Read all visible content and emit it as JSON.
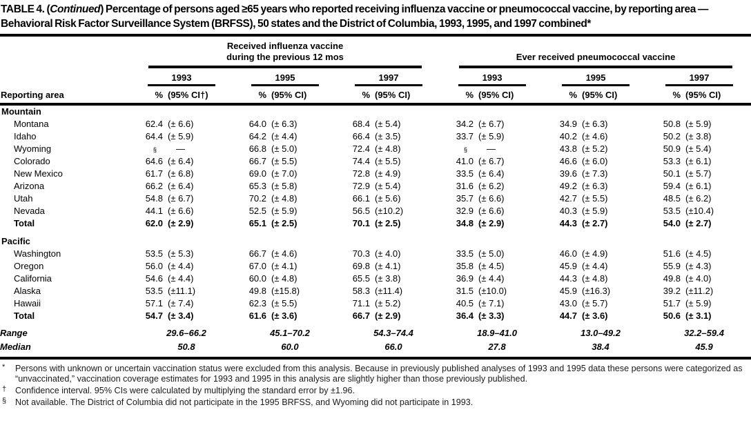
{
  "title": {
    "part1": "TABLE 4. (",
    "continued": "Continued",
    "part2": ") Percentage of persons aged ≥65 years who reported receiving influenza vaccine or pneumococcal vaccine, by reporting area — Behavioral Risk Factor Surveillance System (BRFSS), 50 states and the District of Columbia, 1993, 1995, and 1997 combined*"
  },
  "table": {
    "reporting_area_label": "Reporting area",
    "groups": [
      {
        "id": "influenza",
        "label_line1": "Received influenza vaccine",
        "label_line2": "during the previous 12 mos",
        "years": [
          "1993",
          "1995",
          "1997"
        ]
      },
      {
        "id": "pneumococcal",
        "label_line1": "Ever received pneumococcal vaccine",
        "label_line2": "",
        "years": [
          "1993",
          "1995",
          "1997"
        ]
      }
    ],
    "col_header": {
      "pct": "%",
      "ci_first": "(95% CI†)",
      "ci": "(95% CI)"
    },
    "sections": [
      {
        "name": "Mountain",
        "rows": [
          {
            "area": "Montana",
            "cells": [
              [
                "62.4",
                "(± 6.6)"
              ],
              [
                "64.0",
                "(± 6.3)"
              ],
              [
                "68.4",
                "(± 5.4)"
              ],
              [
                "34.2",
                "(± 6.7)"
              ],
              [
                "34.9",
                "(± 6.3)"
              ],
              [
                "50.8",
                "(± 5.9)"
              ]
            ]
          },
          {
            "area": "Idaho",
            "cells": [
              [
                "64.4",
                "(± 5.9)"
              ],
              [
                "64.2",
                "(± 4.4)"
              ],
              [
                "66.4",
                "(± 3.5)"
              ],
              [
                "33.7",
                "(± 5.9)"
              ],
              [
                "40.2",
                "(± 4.6)"
              ],
              [
                "50.2",
                "(± 3.8)"
              ]
            ]
          },
          {
            "area": "Wyoming",
            "cells": [
              [
                "§",
                "—"
              ],
              [
                "66.8",
                "(± 5.0)"
              ],
              [
                "72.4",
                "(± 4.8)"
              ],
              [
                "§",
                "—"
              ],
              [
                "43.8",
                "(± 5.2)"
              ],
              [
                "50.9",
                "(± 5.4)"
              ]
            ]
          },
          {
            "area": "Colorado",
            "cells": [
              [
                "64.6",
                "(± 6.4)"
              ],
              [
                "66.7",
                "(± 5.5)"
              ],
              [
                "74.4",
                "(± 5.5)"
              ],
              [
                "41.0",
                "(± 6.7)"
              ],
              [
                "46.6",
                "(± 6.0)"
              ],
              [
                "53.3",
                "(± 6.1)"
              ]
            ]
          },
          {
            "area": "New Mexico",
            "cells": [
              [
                "61.7",
                "(± 6.8)"
              ],
              [
                "69.0",
                "(± 7.0)"
              ],
              [
                "72.8",
                "(± 4.9)"
              ],
              [
                "33.5",
                "(± 6.4)"
              ],
              [
                "39.6",
                "(± 7.3)"
              ],
              [
                "50.1",
                "(± 5.7)"
              ]
            ]
          },
          {
            "area": "Arizona",
            "cells": [
              [
                "66.2",
                "(± 6.4)"
              ],
              [
                "65.3",
                "(± 5.8)"
              ],
              [
                "72.9",
                "(± 5.4)"
              ],
              [
                "31.6",
                "(± 6.2)"
              ],
              [
                "49.2",
                "(± 6.3)"
              ],
              [
                "59.4",
                "(± 6.1)"
              ]
            ]
          },
          {
            "area": "Utah",
            "cells": [
              [
                "54.8",
                "(± 6.7)"
              ],
              [
                "70.2",
                "(± 4.8)"
              ],
              [
                "66.1",
                "(± 5.6)"
              ],
              [
                "35.7",
                "(± 6.6)"
              ],
              [
                "42.7",
                "(± 5.5)"
              ],
              [
                "48.5",
                "(± 6.2)"
              ]
            ]
          },
          {
            "area": "Nevada",
            "cells": [
              [
                "44.1",
                "(± 6.6)"
              ],
              [
                "52.5",
                "(± 5.9)"
              ],
              [
                "56.5",
                "(±10.2)"
              ],
              [
                "32.9",
                "(± 6.6)"
              ],
              [
                "40.3",
                "(± 5.9)"
              ],
              [
                "53.5",
                "(±10.4)"
              ]
            ]
          },
          {
            "area": "Total",
            "bold": true,
            "cells": [
              [
                "62.0",
                "(± 2.9)"
              ],
              [
                "65.1",
                "(± 2.5)"
              ],
              [
                "70.1",
                "(± 2.5)"
              ],
              [
                "34.8",
                "(± 2.9)"
              ],
              [
                "44.3",
                "(± 2.7)"
              ],
              [
                "54.0",
                "(± 2.7)"
              ]
            ]
          }
        ]
      },
      {
        "name": "Pacific",
        "rows": [
          {
            "area": "Washington",
            "cells": [
              [
                "53.5",
                "(± 5.3)"
              ],
              [
                "66.7",
                "(± 4.6)"
              ],
              [
                "70.3",
                "(± 4.0)"
              ],
              [
                "33.5",
                "(± 5.0)"
              ],
              [
                "46.0",
                "(± 4.9)"
              ],
              [
                "51.6",
                "(± 4.5)"
              ]
            ]
          },
          {
            "area": "Oregon",
            "cells": [
              [
                "56.0",
                "(± 4.4)"
              ],
              [
                "67.0",
                "(± 4.1)"
              ],
              [
                "69.8",
                "(± 4.1)"
              ],
              [
                "35.8",
                "(± 4.5)"
              ],
              [
                "45.9",
                "(± 4.4)"
              ],
              [
                "55.9",
                "(± 4.3)"
              ]
            ]
          },
          {
            "area": "California",
            "cells": [
              [
                "54.6",
                "(± 4.4)"
              ],
              [
                "60.0",
                "(± 4.8)"
              ],
              [
                "65.5",
                "(± 3.8)"
              ],
              [
                "36.9",
                "(± 4.4)"
              ],
              [
                "44.3",
                "(± 4.8)"
              ],
              [
                "49.8",
                "(± 4.0)"
              ]
            ]
          },
          {
            "area": "Alaska",
            "cells": [
              [
                "53.5",
                "(±11.1)"
              ],
              [
                "49.8",
                "(±15.8)"
              ],
              [
                "58.3",
                "(±11.4)"
              ],
              [
                "31.5",
                "(±10.0)"
              ],
              [
                "45.9",
                "(±16.3)"
              ],
              [
                "39.2",
                "(±11.2)"
              ]
            ]
          },
          {
            "area": "Hawaii",
            "cells": [
              [
                "57.1",
                "(± 7.4)"
              ],
              [
                "62.3",
                "(± 5.5)"
              ],
              [
                "71.1",
                "(± 5.2)"
              ],
              [
                "40.5",
                "(± 7.1)"
              ],
              [
                "43.0",
                "(± 5.7)"
              ],
              [
                "51.7",
                "(± 5.9)"
              ]
            ]
          },
          {
            "area": "Total",
            "bold": true,
            "cells": [
              [
                "54.7",
                "(± 3.4)"
              ],
              [
                "61.6",
                "(± 3.6)"
              ],
              [
                "66.7",
                "(± 2.9)"
              ],
              [
                "36.4",
                "(± 3.3)"
              ],
              [
                "44.7",
                "(± 3.6)"
              ],
              [
                "50.6",
                "(± 3.1)"
              ]
            ]
          }
        ]
      }
    ],
    "summary_rows": [
      {
        "label": "Range",
        "values": [
          "29.6–66.2",
          "45.1–70.2",
          "54.3–74.4",
          "18.9–41.0",
          "13.0–49.2",
          "32.2–59.4"
        ]
      },
      {
        "label": "Median",
        "values": [
          "50.8",
          "60.0",
          "66.0",
          "27.8",
          "38.4",
          "45.9"
        ]
      }
    ]
  },
  "footnotes": [
    {
      "marker": "*",
      "text": "Persons with unknown or uncertain vaccination status were excluded from this analysis. Because in previously published analyses of 1993 and 1995 data these persons were categorized as “unvaccinated,” vaccination coverage estimates for 1993 and 1995 in this analysis are slightly higher than those previously published."
    },
    {
      "marker": "†",
      "text": "Confidence interval. 95% CIs were calculated by multiplying the standard error by ±1.96."
    },
    {
      "marker": "§",
      "text": "Not available. The District of Columbia did not participate in the 1995 BRFSS, and Wyoming did not participate in 1993."
    }
  ]
}
